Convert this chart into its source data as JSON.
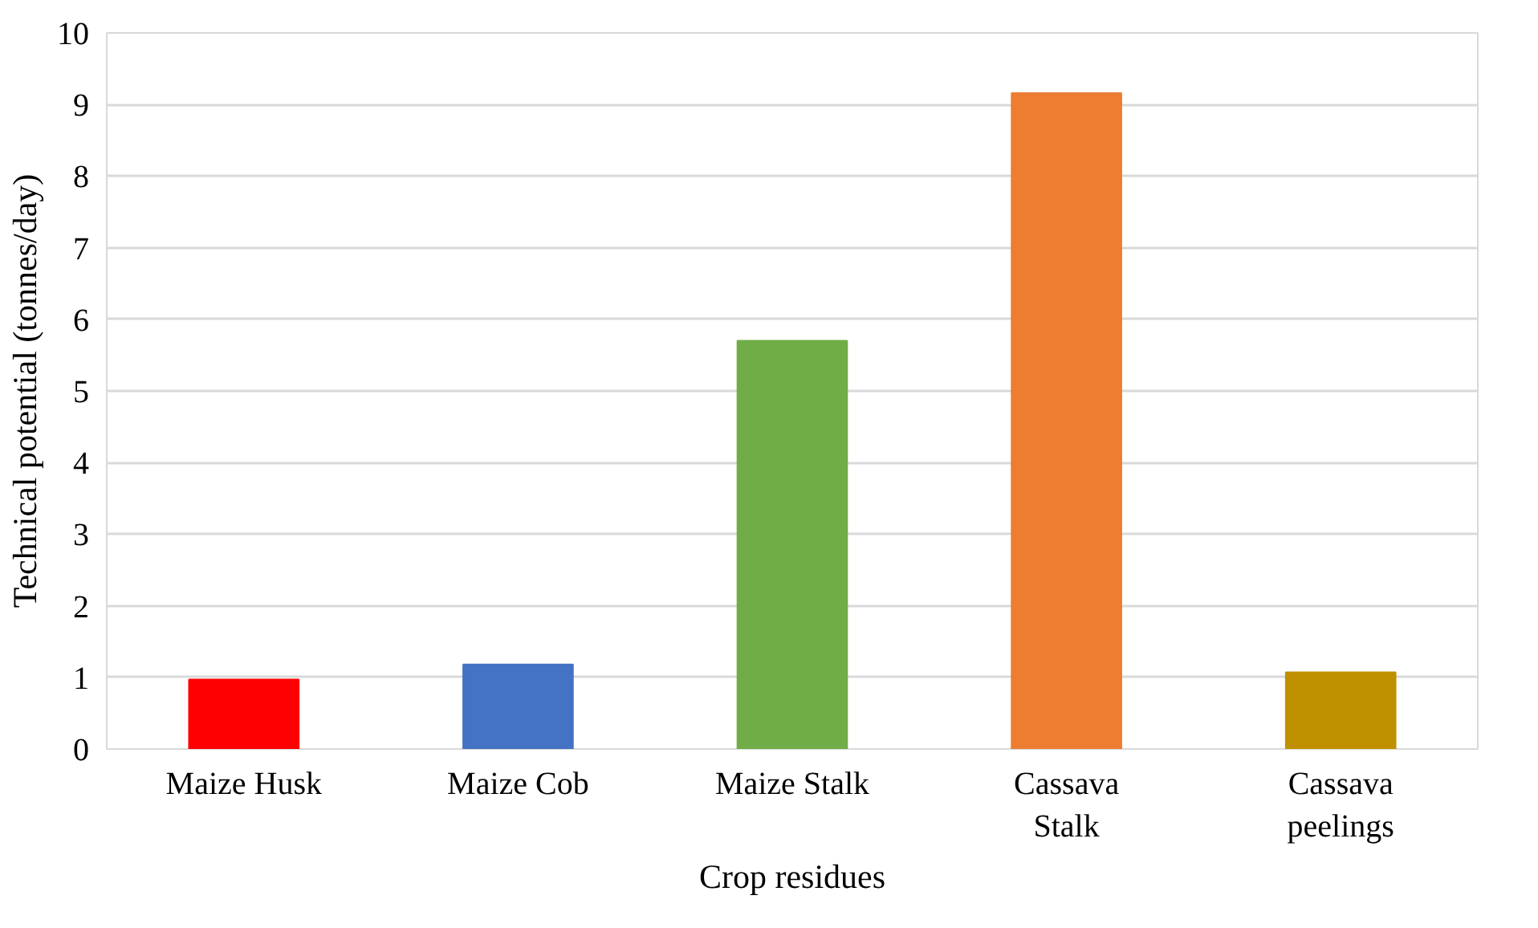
{
  "chart_data": {
    "type": "bar",
    "xlabel": "Crop residues",
    "ylabel": "Technical potential (tonnes/day)",
    "categories": [
      "Maize Husk",
      "Maize Cob",
      "Maize Stalk",
      "Cassava Stalk",
      "Cassava peelings"
    ],
    "values": [
      0.97,
      1.18,
      5.7,
      9.16,
      1.07
    ],
    "colors": [
      "#ff0000",
      "#4472c4",
      "#70ad47",
      "#ed7d31",
      "#bf9000"
    ],
    "ylim": [
      0,
      10
    ],
    "yticks": [
      0,
      1,
      2,
      3,
      4,
      5,
      6,
      7,
      8,
      9,
      10
    ],
    "grid": "y"
  }
}
